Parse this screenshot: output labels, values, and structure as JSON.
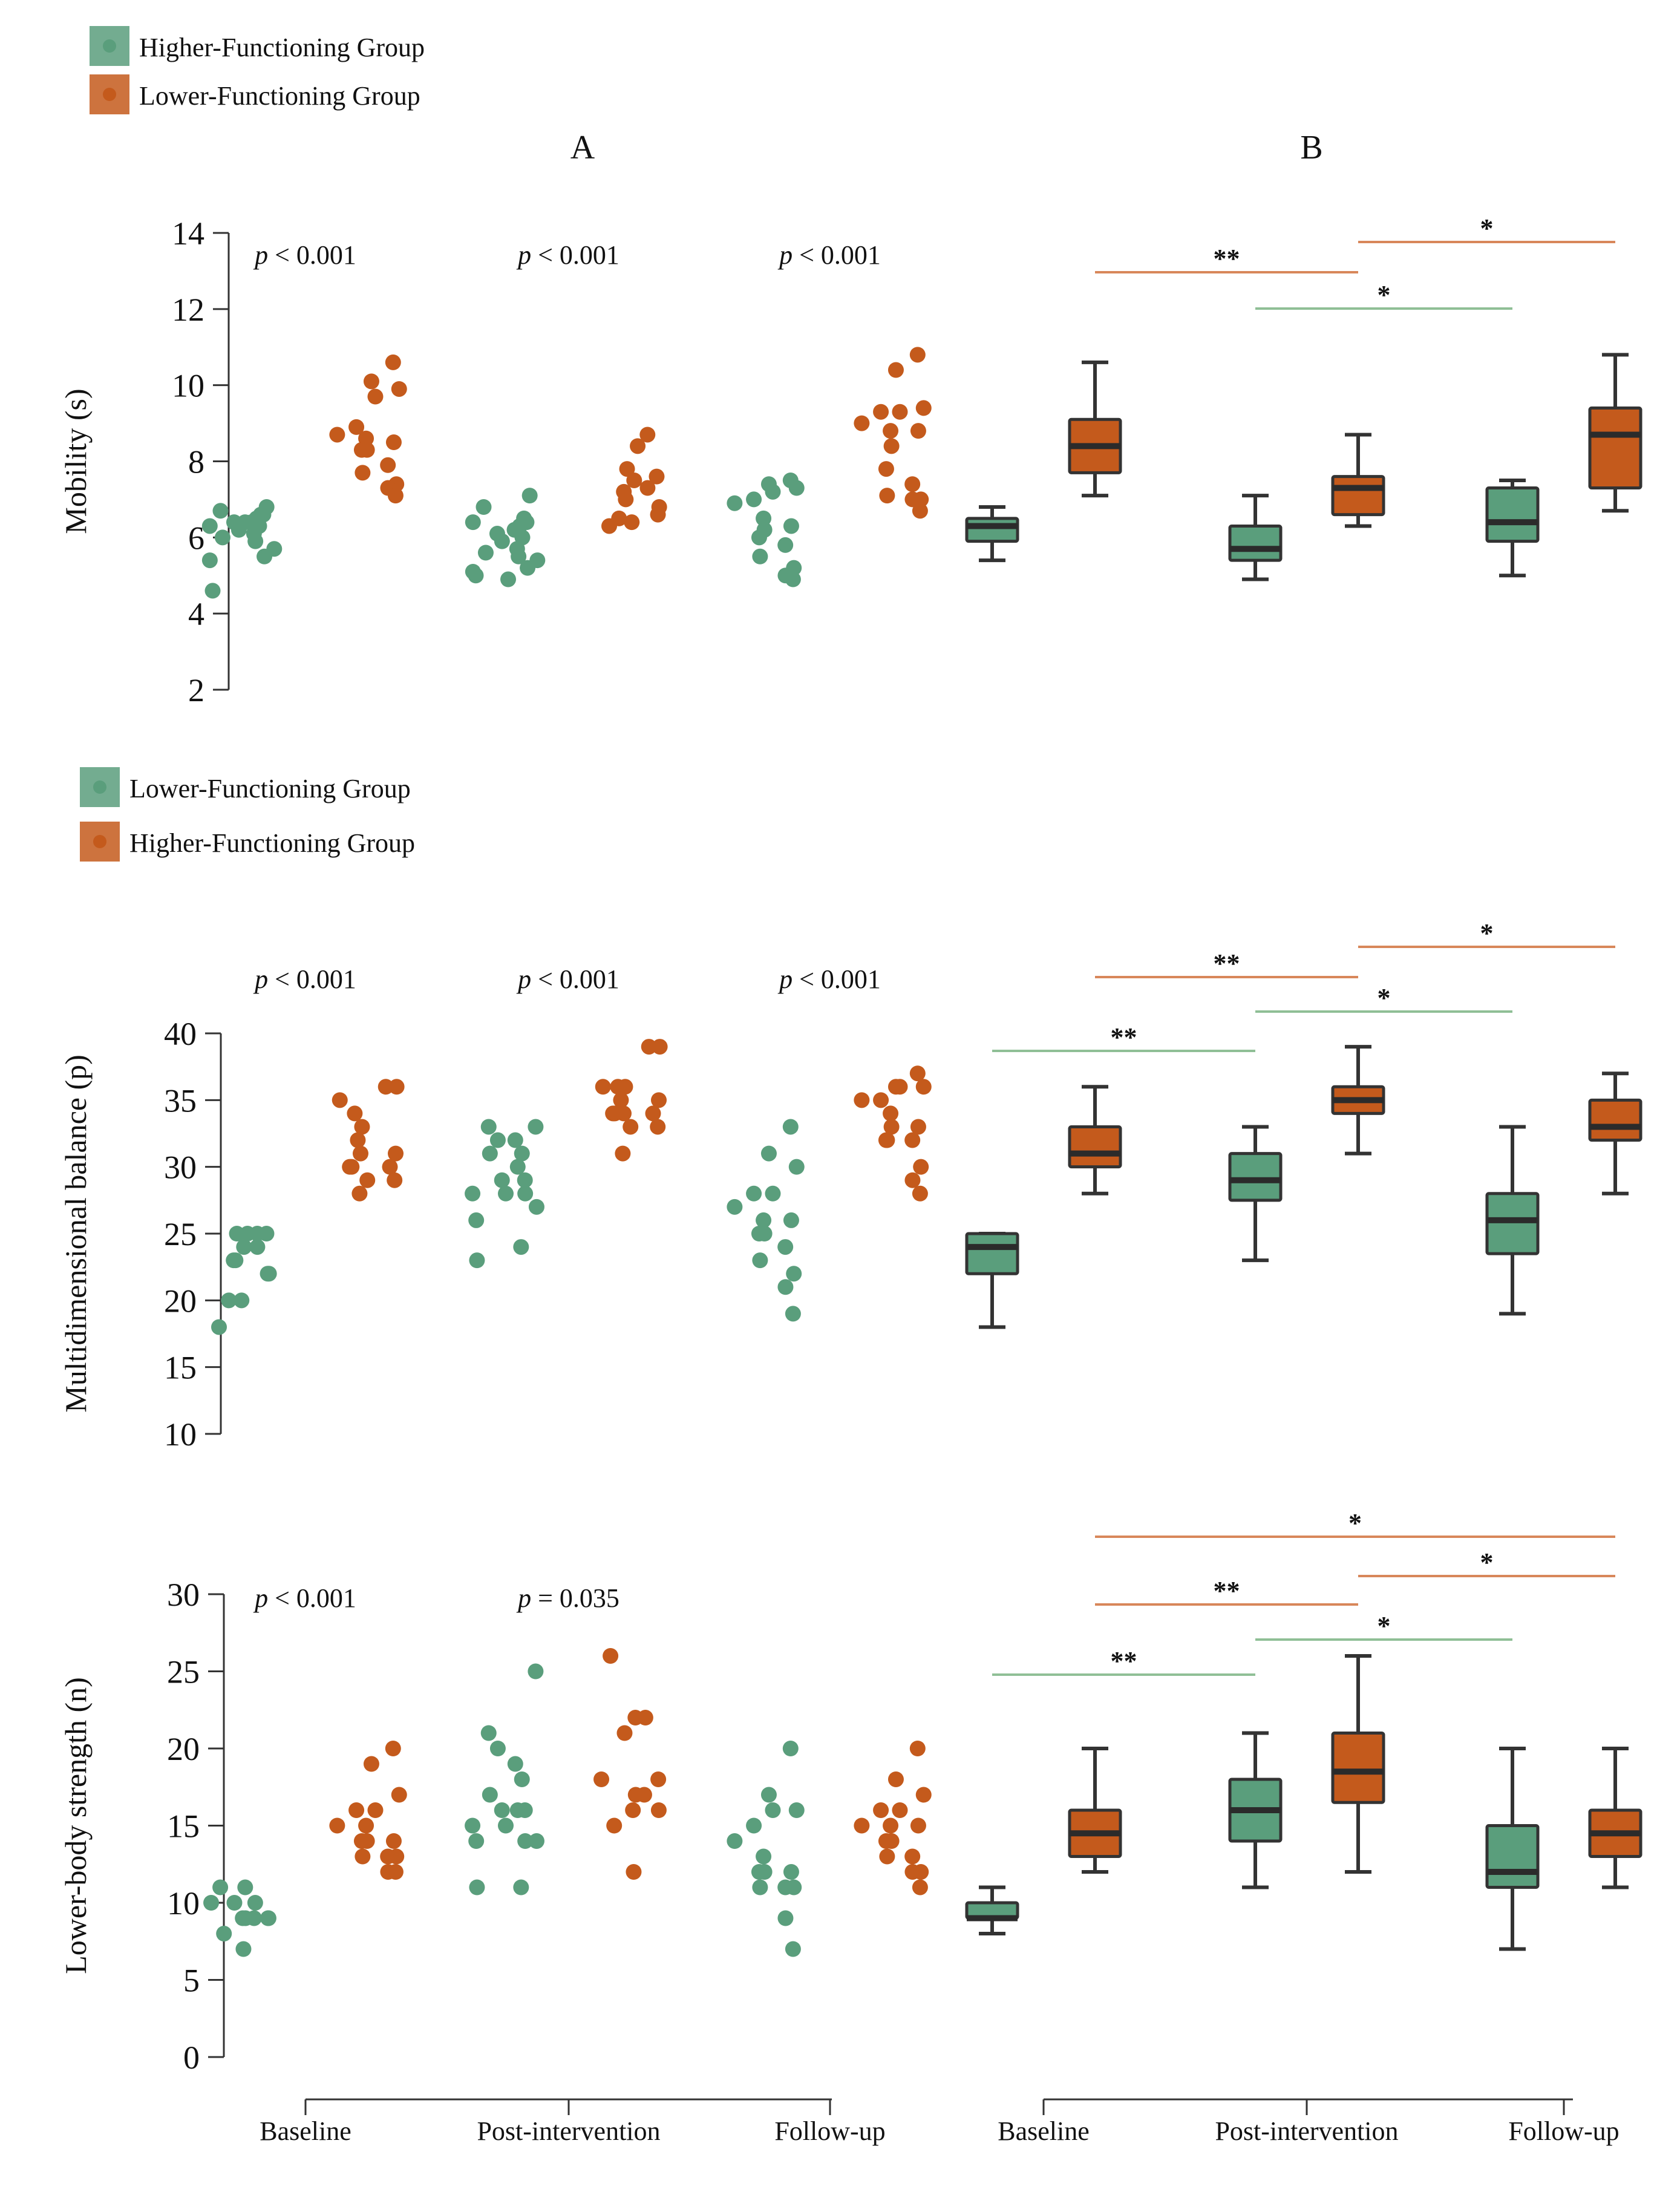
{
  "colors": {
    "green": "#5a9e7c",
    "orange": "#c45a1c",
    "green_line": "#8fbf96",
    "orange_line": "#d8875a",
    "box_edge": "#333333"
  },
  "headers": {
    "panel_a": "A",
    "panel_b": "B"
  },
  "x_labels": [
    "Baseline",
    "Post-intervention",
    "Follow-up"
  ],
  "chart_data": [
    {
      "type": "scatter+box",
      "ylabel": "Mobility (s)",
      "ylim": [
        2,
        14
      ],
      "yticks": [
        2,
        4,
        6,
        8,
        10,
        12,
        14
      ],
      "legend": [
        {
          "label": "Higher-Functioning Group",
          "color": "green"
        },
        {
          "label": "Lower-Functioning Group",
          "color": "orange"
        }
      ],
      "categories": [
        "Baseline",
        "Post-intervention",
        "Follow-up"
      ],
      "pvalues": [
        {
          "prefix": "p",
          "rest": " < 0.001"
        },
        {
          "prefix": "p",
          "rest": " < 0.001"
        },
        {
          "prefix": "p",
          "rest": " < 0.001"
        }
      ],
      "series": [
        {
          "name": "Higher-Functioning Group",
          "color": "green",
          "points": [
            [
              6.8,
              6.7,
              6.6,
              6.6,
              6.5,
              6.4,
              6.4,
              6.3,
              6.2,
              6.1,
              6.0,
              5.9,
              5.7,
              5.5,
              5.4,
              4.6,
              6.4,
              6.3
            ],
            [
              7.1,
              6.8,
              6.5,
              6.4,
              6.3,
              6.2,
              6.1,
              6.0,
              5.9,
              5.7,
              5.6,
              5.5,
              5.4,
              5.2,
              5.1,
              5.0,
              4.9,
              6.4
            ],
            [
              7.5,
              7.4,
              7.3,
              7.2,
              7.0,
              6.9,
              6.5,
              6.3,
              6.2,
              6.0,
              5.8,
              5.5,
              5.2,
              5.0,
              4.9
            ]
          ],
          "boxes": [
            {
              "min": 5.4,
              "q1": 5.9,
              "median": 6.3,
              "q3": 6.5,
              "max": 6.8
            },
            {
              "min": 4.9,
              "q1": 5.4,
              "median": 5.7,
              "q3": 6.3,
              "max": 7.1
            },
            {
              "min": 5.0,
              "q1": 5.9,
              "median": 6.4,
              "q3": 7.3,
              "max": 7.5
            }
          ]
        },
        {
          "name": "Lower-Functioning Group",
          "color": "orange",
          "points": [
            [
              10.6,
              10.1,
              9.9,
              9.7,
              8.9,
              8.7,
              8.6,
              8.5,
              8.3,
              8.3,
              7.9,
              7.7,
              7.4,
              7.3,
              7.1
            ],
            [
              8.7,
              8.4,
              7.8,
              7.6,
              7.5,
              7.3,
              7.2,
              7.0,
              6.8,
              6.6,
              6.5,
              6.4,
              6.3
            ],
            [
              10.8,
              10.4,
              9.4,
              9.3,
              9.3,
              9.0,
              8.8,
              8.8,
              8.4,
              7.8,
              7.4,
              7.1,
              7.0,
              7.0,
              6.7
            ]
          ],
          "boxes": [
            {
              "min": 7.1,
              "q1": 7.7,
              "median": 8.4,
              "q3": 9.1,
              "max": 10.6
            },
            {
              "min": 6.3,
              "q1": 6.6,
              "median": 7.3,
              "q3": 7.6,
              "max": 8.7
            },
            {
              "min": 6.7,
              "q1": 7.3,
              "median": 8.7,
              "q3": 9.4,
              "max": 10.8
            }
          ]
        }
      ],
      "significance": [
        {
          "from": 0,
          "to": 1,
          "group": "orange",
          "label": "**"
        },
        {
          "from": 1,
          "to": 2,
          "group": "orange",
          "label": "*"
        },
        {
          "from": 1,
          "to": 2,
          "group": "green",
          "label": "*"
        }
      ]
    },
    {
      "type": "scatter+box",
      "ylabel": "Multidimensional balance (p)",
      "ylim": [
        10,
        40
      ],
      "yticks": [
        10,
        15,
        20,
        25,
        30,
        35,
        40
      ],
      "legend": [
        {
          "label": "Lower-Functioning Group",
          "color": "green"
        },
        {
          "label": "Higher-Functioning Group",
          "color": "orange"
        }
      ],
      "categories": [
        "Baseline",
        "Post-intervention",
        "Follow-up"
      ],
      "pvalues": [
        {
          "prefix": "p",
          "rest": " < 0.001"
        },
        {
          "prefix": "p",
          "rest": " < 0.001"
        },
        {
          "prefix": "p",
          "rest": " < 0.001"
        }
      ],
      "series": [
        {
          "name": "Lower-Functioning Group",
          "color": "green",
          "points": [
            [
              25,
              25,
              25,
              25,
              24,
              24,
              23,
              23,
              22,
              22,
              20,
              20,
              18
            ],
            [
              33,
              33,
              32,
              32,
              31,
              31,
              30,
              29,
              29,
              28,
              28,
              28,
              27,
              26,
              24,
              23
            ],
            [
              33,
              31,
              30,
              28,
              28,
              27,
              26,
              26,
              25,
              25,
              24,
              23,
              22,
              21,
              19
            ]
          ],
          "boxes": [
            {
              "min": 18,
              "q1": 22,
              "median": 24,
              "q3": 25,
              "max": 25
            },
            {
              "min": 23,
              "q1": 27.5,
              "median": 29,
              "q3": 31,
              "max": 33
            },
            {
              "min": 19,
              "q1": 23.5,
              "median": 26,
              "q3": 28,
              "max": 33
            }
          ]
        },
        {
          "name": "Higher-Functioning Group",
          "color": "orange",
          "points": [
            [
              36,
              36,
              35,
              34,
              33,
              32,
              31,
              31,
              30,
              30,
              30,
              29,
              29,
              28
            ],
            [
              39,
              39,
              36,
              36,
              36,
              35,
              35,
              34,
              34,
              34,
              34,
              33,
              33,
              31
            ],
            [
              37,
              36,
              36,
              36,
              35,
              35,
              34,
              33,
              33,
              32,
              32,
              32,
              30,
              29,
              28
            ]
          ],
          "boxes": [
            {
              "min": 28,
              "q1": 30,
              "median": 31,
              "q3": 33,
              "max": 36
            },
            {
              "min": 31,
              "q1": 34,
              "median": 35,
              "q3": 36,
              "max": 39
            },
            {
              "min": 28,
              "q1": 32,
              "median": 33,
              "q3": 35,
              "max": 37
            }
          ]
        }
      ],
      "significance": [
        {
          "from": 0,
          "to": 1,
          "group": "orange",
          "label": "**"
        },
        {
          "from": 1,
          "to": 2,
          "group": "orange",
          "label": "*"
        },
        {
          "from": 1,
          "to": 2,
          "group": "green",
          "label": "*"
        },
        {
          "from": 0,
          "to": 1,
          "group": "green",
          "label": "**"
        }
      ]
    },
    {
      "type": "scatter+box",
      "ylabel": "Lower-body strength (n)",
      "ylim": [
        0,
        30
      ],
      "yticks": [
        0,
        5,
        10,
        15,
        20,
        25,
        30
      ],
      "legend": [],
      "categories": [
        "Baseline",
        "Post-intervention",
        "Follow-up"
      ],
      "pvalues": [
        {
          "prefix": "p",
          "rest": " < 0.001"
        },
        {
          "prefix": "p",
          "rest": " = 0.035"
        },
        {
          "prefix": "",
          "rest": ""
        }
      ],
      "series": [
        {
          "name": "Lower-Functioning Group",
          "color": "green",
          "points": [
            [
              11,
              11,
              10,
              10,
              10,
              9,
              9,
              9,
              9,
              9,
              8,
              7
            ],
            [
              25,
              21,
              20,
              19,
              18,
              17,
              16,
              16,
              16,
              15,
              15,
              14,
              14,
              14,
              11,
              11
            ],
            [
              20,
              17,
              16,
              16,
              15,
              14,
              13,
              12,
              12,
              12,
              11,
              11,
              11,
              9,
              7
            ]
          ],
          "boxes": [
            {
              "min": 8,
              "q1": 9,
              "median": 9,
              "q3": 10,
              "max": 11
            },
            {
              "min": 11,
              "q1": 14,
              "median": 16,
              "q3": 18,
              "max": 21
            },
            {
              "min": 7,
              "q1": 11,
              "median": 12,
              "q3": 15,
              "max": 20
            }
          ]
        },
        {
          "name": "Higher-Functioning Group",
          "color": "orange",
          "points": [
            [
              20,
              19,
              17,
              16,
              16,
              15,
              15,
              14,
              14,
              14,
              13,
              13,
              13,
              12,
              12
            ],
            [
              26,
              22,
              22,
              21,
              18,
              18,
              17,
              17,
              16,
              16,
              15,
              12
            ],
            [
              20,
              18,
              17,
              16,
              16,
              15,
              15,
              15,
              14,
              14,
              13,
              13,
              12,
              12,
              11
            ]
          ],
          "boxes": [
            {
              "min": 12,
              "q1": 13,
              "median": 14.5,
              "q3": 16,
              "max": 20
            },
            {
              "min": 12,
              "q1": 16.5,
              "median": 18.5,
              "q3": 21,
              "max": 26
            },
            {
              "min": 11,
              "q1": 13,
              "median": 14.5,
              "q3": 16,
              "max": 20
            }
          ]
        }
      ],
      "significance": [
        {
          "from": 0,
          "to": 2,
          "group": "orange",
          "label": "*"
        },
        {
          "from": 1,
          "to": 2,
          "group": "orange",
          "label": "*"
        },
        {
          "from": 0,
          "to": 1,
          "group": "orange",
          "label": "**"
        },
        {
          "from": 1,
          "to": 2,
          "group": "green",
          "label": "*"
        },
        {
          "from": 0,
          "to": 1,
          "group": "green",
          "label": "**"
        }
      ]
    }
  ]
}
